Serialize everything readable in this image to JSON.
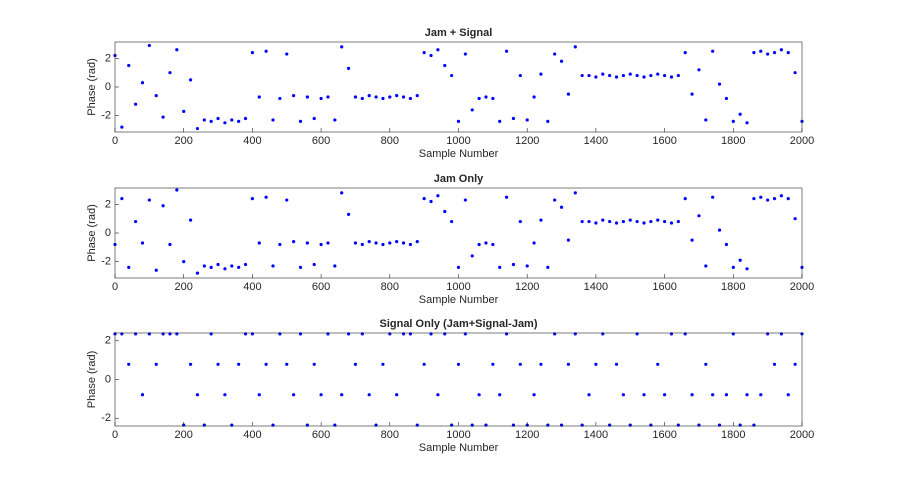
{
  "chart_data": [
    {
      "type": "scatter",
      "title": "Jam + Signal",
      "xlabel": "Sample Number",
      "ylabel": "Phase (rad)",
      "color": "#0000ff",
      "xlim": [
        0,
        2000
      ],
      "ylim": [
        -3.1416,
        3.1416
      ],
      "xticks": [
        0,
        200,
        400,
        600,
        800,
        1000,
        1200,
        1400,
        1600,
        1800,
        2000
      ],
      "yticks": [
        -2,
        0,
        2
      ],
      "x": [
        0,
        20,
        40,
        60,
        80,
        100,
        120,
        140,
        160,
        180,
        200,
        220,
        240,
        260,
        280,
        300,
        320,
        340,
        360,
        380,
        400,
        420,
        440,
        460,
        480,
        500,
        520,
        540,
        560,
        580,
        600,
        620,
        640,
        660,
        680,
        700,
        720,
        740,
        760,
        780,
        800,
        820,
        840,
        860,
        880,
        900,
        920,
        940,
        960,
        980,
        1000,
        1020,
        1040,
        1060,
        1080,
        1100,
        1120,
        1140,
        1160,
        1180,
        1200,
        1220,
        1240,
        1260,
        1280,
        1300,
        1320,
        1340,
        1360,
        1380,
        1400,
        1420,
        1440,
        1460,
        1480,
        1500,
        1520,
        1540,
        1560,
        1580,
        1600,
        1620,
        1640,
        1660,
        1680,
        1700,
        1720,
        1740,
        1760,
        1780,
        1800,
        1820,
        1840,
        1860,
        1880,
        1900,
        1920,
        1940,
        1960,
        1980,
        2000
      ],
      "values": [
        2.2,
        -2.8,
        1.5,
        -1.2,
        0.3,
        2.9,
        -0.6,
        -2.1,
        1.0,
        2.6,
        -1.7,
        0.5,
        -2.9,
        -2.3,
        -2.4,
        -2.2,
        -2.5,
        -2.3,
        -2.4,
        -2.2,
        2.4,
        -0.7,
        2.5,
        -2.3,
        -0.8,
        2.3,
        -0.6,
        -2.4,
        -0.7,
        -2.2,
        -0.8,
        -0.7,
        -2.3,
        2.8,
        1.3,
        -0.7,
        -0.8,
        -0.6,
        -0.7,
        -0.8,
        -0.7,
        -0.6,
        -0.7,
        -0.8,
        -0.6,
        2.4,
        2.2,
        2.6,
        1.5,
        0.8,
        -2.4,
        2.3,
        -1.6,
        -0.8,
        -0.7,
        -0.8,
        -2.4,
        2.5,
        -2.2,
        0.8,
        -2.3,
        -0.7,
        0.9,
        -2.4,
        2.3,
        1.8,
        -0.5,
        2.8,
        0.8,
        0.8,
        0.7,
        0.9,
        0.8,
        0.7,
        0.8,
        0.9,
        0.8,
        0.7,
        0.8,
        0.9,
        0.8,
        0.7,
        0.8,
        2.4,
        -0.5,
        1.2,
        -2.3,
        2.5,
        0.2,
        -0.8,
        -2.4,
        -1.9,
        -2.5,
        2.4,
        2.5,
        2.3,
        2.4,
        2.6,
        2.4,
        1.0,
        -2.4
      ]
    },
    {
      "type": "scatter",
      "title": "Jam Only",
      "xlabel": "Sample Number",
      "ylabel": "Phase (rad)",
      "color": "#0000ff",
      "xlim": [
        0,
        2000
      ],
      "ylim": [
        -3.1416,
        3.1416
      ],
      "xticks": [
        0,
        200,
        400,
        600,
        800,
        1000,
        1200,
        1400,
        1600,
        1800,
        2000
      ],
      "yticks": [
        -2,
        0,
        2
      ],
      "x": [
        0,
        20,
        40,
        60,
        80,
        100,
        120,
        140,
        160,
        180,
        200,
        220,
        240,
        260,
        280,
        300,
        320,
        340,
        360,
        380,
        400,
        420,
        440,
        460,
        480,
        500,
        520,
        540,
        560,
        580,
        600,
        620,
        640,
        660,
        680,
        700,
        720,
        740,
        760,
        780,
        800,
        820,
        840,
        860,
        880,
        900,
        920,
        940,
        960,
        980,
        1000,
        1020,
        1040,
        1060,
        1080,
        1100,
        1120,
        1140,
        1160,
        1180,
        1200,
        1220,
        1240,
        1260,
        1280,
        1300,
        1320,
        1340,
        1360,
        1380,
        1400,
        1420,
        1440,
        1460,
        1480,
        1500,
        1520,
        1540,
        1560,
        1580,
        1600,
        1620,
        1640,
        1660,
        1680,
        1700,
        1720,
        1740,
        1760,
        1780,
        1800,
        1820,
        1840,
        1860,
        1880,
        1900,
        1920,
        1940,
        1960,
        1980,
        2000
      ],
      "values": [
        -0.8,
        2.4,
        -2.4,
        0.8,
        -0.7,
        2.3,
        -2.6,
        1.9,
        -0.8,
        3.0,
        -2.0,
        0.9,
        -2.8,
        -2.3,
        -2.4,
        -2.2,
        -2.5,
        -2.3,
        -2.4,
        -2.2,
        2.4,
        -0.7,
        2.5,
        -2.3,
        -0.8,
        2.3,
        -0.6,
        -2.4,
        -0.7,
        -2.2,
        -0.8,
        -0.7,
        -2.3,
        2.8,
        1.3,
        -0.7,
        -0.8,
        -0.6,
        -0.7,
        -0.8,
        -0.7,
        -0.6,
        -0.7,
        -0.8,
        -0.6,
        2.4,
        2.2,
        2.6,
        1.5,
        0.8,
        -2.4,
        2.3,
        -1.6,
        -0.8,
        -0.7,
        -0.8,
        -2.4,
        2.5,
        -2.2,
        0.8,
        -2.3,
        -0.7,
        0.9,
        -2.4,
        2.3,
        1.8,
        -0.5,
        2.8,
        0.8,
        0.8,
        0.7,
        0.9,
        0.8,
        0.7,
        0.8,
        0.9,
        0.8,
        0.7,
        0.8,
        0.9,
        0.8,
        0.7,
        0.8,
        2.4,
        -0.5,
        1.2,
        -2.3,
        2.5,
        0.2,
        -0.8,
        -2.4,
        -1.9,
        -2.5,
        2.4,
        2.5,
        2.3,
        2.4,
        2.6,
        2.4,
        1.0,
        -2.4
      ]
    },
    {
      "type": "scatter",
      "title": "Signal Only (Jam+Signal-Jam)",
      "xlabel": "Sample Number",
      "ylabel": "Phase (rad)",
      "color": "#0000ff",
      "xlim": [
        0,
        2000
      ],
      "ylim": [
        -2.4,
        2.4
      ],
      "xticks": [
        0,
        200,
        400,
        600,
        800,
        1000,
        1200,
        1400,
        1600,
        1800,
        2000
      ],
      "yticks": [
        -2,
        0,
        2
      ],
      "x": [
        0,
        20,
        40,
        60,
        80,
        100,
        120,
        140,
        160,
        180,
        200,
        220,
        240,
        260,
        280,
        300,
        320,
        340,
        360,
        380,
        400,
        420,
        440,
        460,
        480,
        500,
        520,
        540,
        560,
        580,
        600,
        620,
        640,
        660,
        680,
        700,
        720,
        740,
        760,
        780,
        800,
        820,
        840,
        860,
        880,
        900,
        920,
        940,
        960,
        980,
        1000,
        1020,
        1040,
        1060,
        1080,
        1100,
        1120,
        1140,
        1160,
        1180,
        1200,
        1220,
        1240,
        1260,
        1280,
        1300,
        1320,
        1340,
        1360,
        1380,
        1400,
        1420,
        1440,
        1460,
        1480,
        1500,
        1520,
        1540,
        1560,
        1580,
        1600,
        1620,
        1640,
        1660,
        1680,
        1700,
        1720,
        1740,
        1760,
        1780,
        1800,
        1820,
        1840,
        1860,
        1880,
        1900,
        1920,
        1940,
        1960,
        1980,
        2000
      ],
      "values": [
        2.356,
        2.356,
        0.785,
        2.356,
        -0.785,
        2.356,
        0.785,
        2.356,
        2.356,
        2.356,
        -2.356,
        0.785,
        -0.785,
        -2.356,
        2.356,
        0.785,
        -0.785,
        -2.356,
        0.785,
        2.356,
        2.356,
        -0.785,
        0.785,
        -2.356,
        2.356,
        0.785,
        -0.785,
        2.356,
        -2.356,
        0.785,
        -0.785,
        2.356,
        -2.356,
        -0.785,
        2.356,
        0.785,
        2.356,
        -0.785,
        -2.356,
        0.785,
        2.356,
        -0.785,
        2.356,
        2.356,
        -2.356,
        0.785,
        2.356,
        -0.785,
        2.356,
        -2.356,
        0.785,
        2.356,
        -2.356,
        -0.785,
        -2.356,
        0.785,
        -0.785,
        2.356,
        -2.356,
        0.785,
        -2.356,
        -0.785,
        0.785,
        -2.356,
        2.356,
        -2.356,
        0.785,
        2.356,
        -2.356,
        -0.785,
        0.785,
        2.356,
        -2.356,
        0.785,
        -0.785,
        -2.356,
        2.356,
        -0.785,
        -2.356,
        0.785,
        -0.785,
        2.356,
        -2.356,
        2.356,
        -0.785,
        -2.356,
        0.785,
        -0.785,
        -2.356,
        -0.785,
        2.356,
        -2.356,
        -0.785,
        -2.356,
        -0.785,
        2.356,
        0.785,
        2.356,
        -0.785,
        0.785,
        2.356
      ]
    }
  ]
}
